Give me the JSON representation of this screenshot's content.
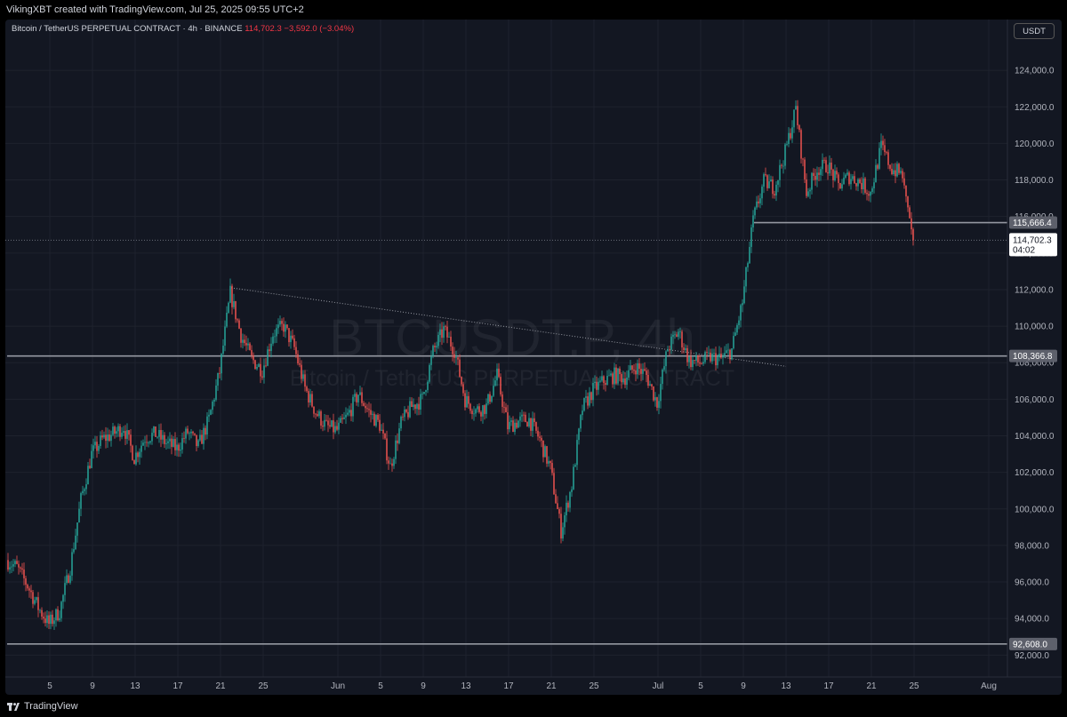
{
  "header": {
    "attribution": "VikingXBT created with TradingView.com, Jul 25, 2025 09:55 UTC+2"
  },
  "legend": {
    "title": "Bitcoin / TetherUS PERPETUAL CONTRACT · 4h · BINANCE",
    "price": "114,702.3",
    "change": "−3,592.0 (−3.04%)"
  },
  "watermark": {
    "symbol": "BTCUSDT.P, 4h",
    "description": "Bitcoin / TetherUS PERPETUAL CONTRACT"
  },
  "price_axis": {
    "currency": "USDT"
  },
  "price_labels": {
    "level_high": "115,666.4",
    "current_price": "114,702.3",
    "countdown": "04:02",
    "level_mid": "108,366.8",
    "level_low": "92,608.0"
  },
  "footer": {
    "brand": "TradingView"
  },
  "colors": {
    "background": "#131722",
    "up": "#26a69a",
    "down": "#ef5350",
    "grid": "#1e222d",
    "level_line": "#9598a1"
  },
  "chart_data": {
    "type": "candlestick",
    "symbol": "BTCUSDT.P",
    "timeframe": "4h",
    "ylim": [
      90800,
      126000
    ],
    "y_ticks": [
      92000,
      94000,
      96000,
      98000,
      100000,
      102000,
      104000,
      106000,
      108000,
      110000,
      112000,
      114000,
      116000,
      118000,
      120000,
      122000,
      124000
    ],
    "y_tick_labels": [
      "92,000.0",
      "94,000.0",
      "96,000.0",
      "98,000.0",
      "100,000.0",
      "102,000.0",
      "104,000.0",
      "106,000.0",
      "108,000.0",
      "110,000.0",
      "112,000.0",
      "114,000.0",
      "116,000.0",
      "118,000.0",
      "120,000.0",
      "122,000.0",
      "124,000.0"
    ],
    "x_ticks": [
      {
        "date": "2025-05-05",
        "label": "5"
      },
      {
        "date": "2025-05-09",
        "label": "9"
      },
      {
        "date": "2025-05-13",
        "label": "13"
      },
      {
        "date": "2025-05-17",
        "label": "17"
      },
      {
        "date": "2025-05-21",
        "label": "21"
      },
      {
        "date": "2025-05-25",
        "label": "25"
      },
      {
        "date": "2025-06-01",
        "label": "Jun"
      },
      {
        "date": "2025-06-05",
        "label": "5"
      },
      {
        "date": "2025-06-09",
        "label": "9"
      },
      {
        "date": "2025-06-13",
        "label": "13"
      },
      {
        "date": "2025-06-17",
        "label": "17"
      },
      {
        "date": "2025-06-21",
        "label": "21"
      },
      {
        "date": "2025-06-25",
        "label": "25"
      },
      {
        "date": "2025-07-01",
        "label": "Jul"
      },
      {
        "date": "2025-07-05",
        "label": "5"
      },
      {
        "date": "2025-07-09",
        "label": "9"
      },
      {
        "date": "2025-07-13",
        "label": "13"
      },
      {
        "date": "2025-07-17",
        "label": "17"
      },
      {
        "date": "2025-07-21",
        "label": "21"
      },
      {
        "date": "2025-07-25",
        "label": "25"
      },
      {
        "date": "2025-08-01",
        "label": "Aug"
      }
    ],
    "horizontal_levels": [
      {
        "price": 115666.4,
        "from_date": "2025-07-10"
      },
      {
        "price": 108366.8,
        "from_date": "2025-05-01"
      },
      {
        "price": 92608.0,
        "from_date": "2025-05-01"
      }
    ],
    "current_price": 114702.3,
    "trendline": {
      "from": [
        "2025-05-22",
        112100
      ],
      "to": [
        "2025-07-13",
        107800
      ]
    },
    "close_path": [
      [
        "2025-05-01",
        97200
      ],
      [
        "2025-05-02",
        96800
      ],
      [
        "2025-05-03",
        95800
      ],
      [
        "2025-05-04",
        94600
      ],
      [
        "2025-05-05",
        93700
      ],
      [
        "2025-05-06",
        94400
      ],
      [
        "2025-05-07",
        96800
      ],
      [
        "2025-05-08",
        100500
      ],
      [
        "2025-05-09",
        103000
      ],
      [
        "2025-05-10",
        103800
      ],
      [
        "2025-05-11",
        104100
      ],
      [
        "2025-05-12",
        104500
      ],
      [
        "2025-05-13",
        102800
      ],
      [
        "2025-05-14",
        103900
      ],
      [
        "2025-05-15",
        104100
      ],
      [
        "2025-05-16",
        103600
      ],
      [
        "2025-05-17",
        103300
      ],
      [
        "2025-05-18",
        104200
      ],
      [
        "2025-05-19",
        103400
      ],
      [
        "2025-05-20",
        104900
      ],
      [
        "2025-05-21",
        107500
      ],
      [
        "2025-05-22",
        111800
      ],
      [
        "2025-05-23",
        109500
      ],
      [
        "2025-05-24",
        108200
      ],
      [
        "2025-05-25",
        107600
      ],
      [
        "2025-05-26",
        109600
      ],
      [
        "2025-05-27",
        110000
      ],
      [
        "2025-05-28",
        108800
      ],
      [
        "2025-05-29",
        106600
      ],
      [
        "2025-05-30",
        105300
      ],
      [
        "2025-05-31",
        104500
      ],
      [
        "2025-06-01",
        104300
      ],
      [
        "2025-06-02",
        105100
      ],
      [
        "2025-06-03",
        106300
      ],
      [
        "2025-06-04",
        105300
      ],
      [
        "2025-06-05",
        104600
      ],
      [
        "2025-06-06",
        102300
      ],
      [
        "2025-06-07",
        104700
      ],
      [
        "2025-06-08",
        105600
      ],
      [
        "2025-06-09",
        106000
      ],
      [
        "2025-06-10",
        108600
      ],
      [
        "2025-06-11",
        109800
      ],
      [
        "2025-06-12",
        108700
      ],
      [
        "2025-06-13",
        106000
      ],
      [
        "2025-06-14",
        105400
      ],
      [
        "2025-06-15",
        105600
      ],
      [
        "2025-06-16",
        107300
      ],
      [
        "2025-06-17",
        104500
      ],
      [
        "2025-06-18",
        104800
      ],
      [
        "2025-06-19",
        104900
      ],
      [
        "2025-06-20",
        103800
      ],
      [
        "2025-06-21",
        102200
      ],
      [
        "2025-06-22",
        98800
      ],
      [
        "2025-06-23",
        101300
      ],
      [
        "2025-06-24",
        105500
      ],
      [
        "2025-06-25",
        106500
      ],
      [
        "2025-06-26",
        107000
      ],
      [
        "2025-06-27",
        107300
      ],
      [
        "2025-06-28",
        107200
      ],
      [
        "2025-06-29",
        107800
      ],
      [
        "2025-06-30",
        107300
      ],
      [
        "2025-07-01",
        105800
      ],
      [
        "2025-07-02",
        108800
      ],
      [
        "2025-07-03",
        109700
      ],
      [
        "2025-07-04",
        108100
      ],
      [
        "2025-07-05",
        108000
      ],
      [
        "2025-07-06",
        108300
      ],
      [
        "2025-07-07",
        108200
      ],
      [
        "2025-07-08",
        108700
      ],
      [
        "2025-07-09",
        111300
      ],
      [
        "2025-07-10",
        115800
      ],
      [
        "2025-07-11",
        117900
      ],
      [
        "2025-07-12",
        117600
      ],
      [
        "2025-07-13",
        119500
      ],
      [
        "2025-07-14",
        121900
      ],
      [
        "2025-07-15",
        117300
      ],
      [
        "2025-07-16",
        118600
      ],
      [
        "2025-07-17",
        118800
      ],
      [
        "2025-07-18",
        117700
      ],
      [
        "2025-07-19",
        118200
      ],
      [
        "2025-07-20",
        117900
      ],
      [
        "2025-07-21",
        117300
      ],
      [
        "2025-07-22",
        119800
      ],
      [
        "2025-07-23",
        118600
      ],
      [
        "2025-07-24",
        118300
      ],
      [
        "2025-07-25",
        114702.3
      ]
    ]
  }
}
